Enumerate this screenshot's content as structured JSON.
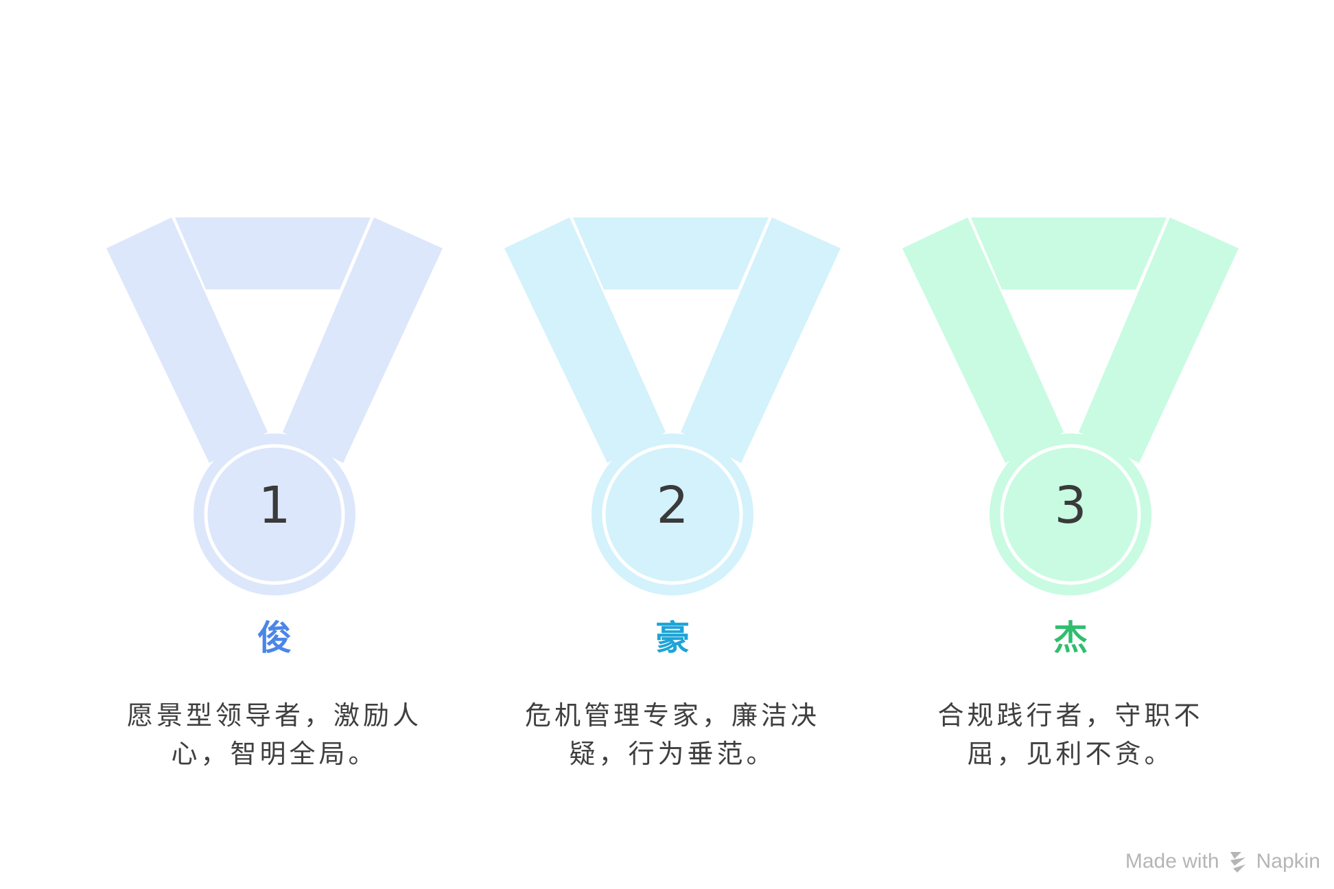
{
  "medals": [
    {
      "number": "1",
      "title": "俊",
      "description": "愿景型领导者，激励人心，智明全局。",
      "ribbon_color": "#dde7fb",
      "title_color": "#4a86e8"
    },
    {
      "number": "2",
      "title": "豪",
      "description": "危机管理专家，廉洁决疑，行为垂范。",
      "ribbon_color": "#d3f2fb",
      "title_color": "#1da4d7"
    },
    {
      "number": "3",
      "title": "杰",
      "description": "合规践行者，守职不屈，见利不贪。",
      "ribbon_color": "#c8fbe2",
      "title_color": "#2fbe6e"
    }
  ],
  "footer": {
    "made_with": "Made with",
    "brand": "Napkin",
    "logo_icon": "napkin-logo-icon"
  }
}
